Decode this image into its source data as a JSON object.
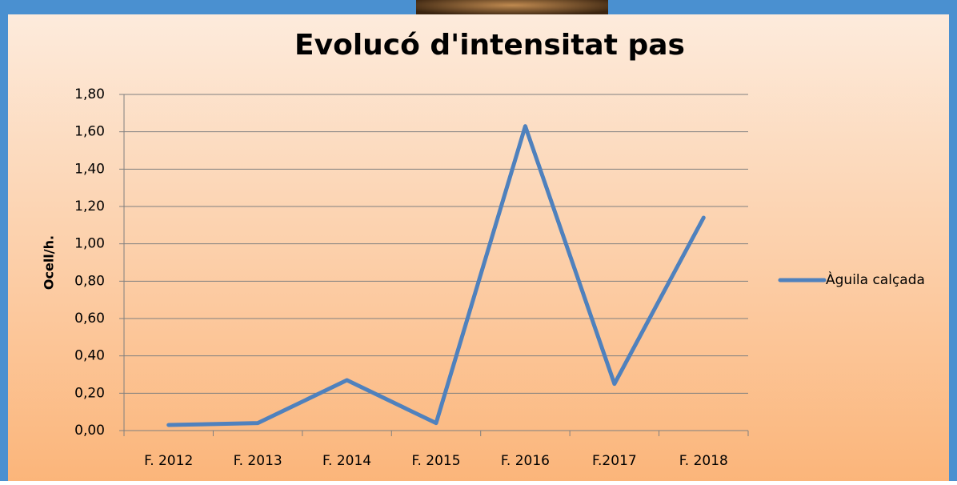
{
  "chart_data": {
    "type": "line",
    "title": "Evolucó d'intensitat pas",
    "y_label": "Ocell/h.",
    "categories": [
      "F. 2012",
      "F. 2013",
      "F. 2014",
      "F. 2015",
      "F. 2016",
      "F.2017",
      "F. 2018"
    ],
    "series": [
      {
        "name": "Àguila calçada",
        "color": "#4f81bd",
        "values": [
          0.03,
          0.04,
          0.27,
          0.04,
          1.63,
          0.25,
          1.14
        ]
      }
    ],
    "ylim": [
      0,
      1.8
    ],
    "yticks": [
      {
        "value": 0,
        "label": "0,00"
      },
      {
        "value": 0.2,
        "label": "0,20"
      },
      {
        "value": 0.4,
        "label": "0,40"
      },
      {
        "value": 0.6,
        "label": "0,60"
      },
      {
        "value": 0.8,
        "label": "0,80"
      },
      {
        "value": 1.0,
        "label": "1,00"
      },
      {
        "value": 1.2,
        "label": "1,20"
      },
      {
        "value": 1.4,
        "label": "1,40"
      },
      {
        "value": 1.6,
        "label": "1,60"
      },
      {
        "value": 1.8,
        "label": "1,80"
      }
    ],
    "grid": true,
    "legend": "right"
  }
}
